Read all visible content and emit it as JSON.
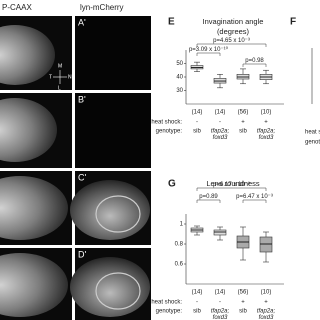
{
  "figure": {
    "images": {
      "header_left": "P-CAAX",
      "header_right": "lyn-mCherry",
      "labels": [
        "A'",
        "B'",
        "C'",
        "D'"
      ],
      "axis_labels": [
        "M",
        "T",
        "N",
        "L"
      ]
    },
    "panels": [
      {
        "label": "E",
        "title": "Invagination angle",
        "subtitle": "(degrees)",
        "ylim": [
          20,
          60
        ],
        "yticks": [
          30,
          40,
          50
        ],
        "boxes": [
          {
            "min": 44,
            "q1": 46,
            "median": 47,
            "q3": 48.5,
            "max": 51
          },
          {
            "min": 32,
            "q1": 35.5,
            "median": 37,
            "q3": 39,
            "max": 42
          },
          {
            "min": 35,
            "q1": 38.5,
            "median": 40,
            "q3": 42,
            "max": 46
          },
          {
            "min": 35,
            "q1": 38,
            "median": 40,
            "q3": 42,
            "max": 45
          }
        ],
        "comparisons": [
          "p=4.65 x 10⁻³",
          "p=3.09 x 10⁻¹⁰",
          "p=0.98"
        ],
        "counts": [
          "(14)",
          "(14)",
          "(56)",
          "(10)"
        ],
        "heat_shock_label": "heat shock:",
        "heat_shock": [
          "-",
          "-",
          "+",
          "+"
        ],
        "genotype_label": "genotype:",
        "genotypes": [
          [
            "sib"
          ],
          [
            "tfap2a;",
            "foxd3"
          ],
          [
            "sib"
          ],
          [
            "tfap2a;",
            "foxd3"
          ]
        ]
      },
      {
        "label": "F",
        "heat_shock_label": "heat shock:",
        "genotype_label": "genotype:"
      },
      {
        "label": "G",
        "title": "Lens roundness",
        "ylim": [
          0.4,
          1.1
        ],
        "yticks": [
          0.6,
          0.8,
          1.0
        ],
        "boxes": [
          {
            "min": 0.89,
            "q1": 0.92,
            "median": 0.94,
            "q3": 0.96,
            "max": 0.98
          },
          {
            "min": 0.84,
            "q1": 0.89,
            "median": 0.92,
            "q3": 0.94,
            "max": 0.97
          },
          {
            "min": 0.64,
            "q1": 0.76,
            "median": 0.82,
            "q3": 0.88,
            "max": 0.97
          },
          {
            "min": 0.62,
            "q1": 0.72,
            "median": 0.8,
            "q3": 0.87,
            "max": 0.92
          }
        ],
        "comparisons": [
          "p=6.17 x 10⁻³",
          "p=0.89",
          "p=6.47 x 10⁻³"
        ],
        "counts": [
          "(14)",
          "(14)",
          "(56)",
          "(10)"
        ],
        "heat_shock_label": "heat shock:",
        "heat_shock": [
          "-",
          "-",
          "+",
          "+"
        ],
        "genotype_label": "genotype:",
        "genotypes": [
          [
            "sib"
          ],
          [
            "tfap2a;",
            "foxd3"
          ],
          [
            "sib"
          ],
          [
            "tfap2a;",
            "foxd3"
          ]
        ]
      }
    ]
  }
}
